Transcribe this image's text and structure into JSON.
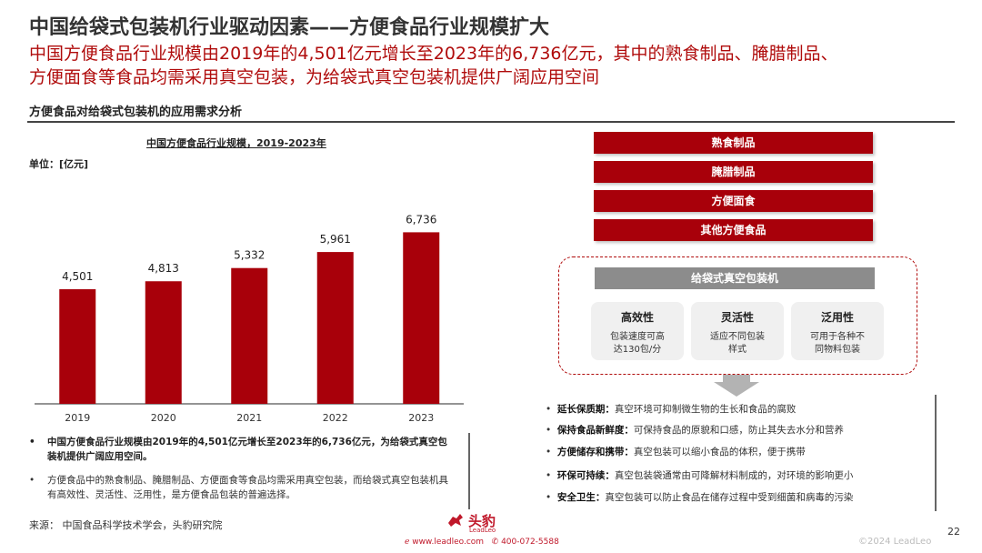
{
  "title": "中国给袋式包装机行业驱动因素——方便食品行业规模扩大",
  "subtitle_line1": "中国方便食品行业规模由2019年的4,501亿元增长至2023年的6,736亿元，其中的熟食制品、腌腊制品、",
  "subtitle_line2": "方便面食等食品均需采用真空包装，为给袋式真空包装机提供广阔应用空间",
  "section_title": "方便食品对给袋式包装机的应用需求分析",
  "chart_data": {
    "type": "bar",
    "title": "中国方便食品行业规模，2019-2023年",
    "unit_label": "单位：[亿元]",
    "categories": [
      "2019",
      "2020",
      "2021",
      "2022",
      "2023"
    ],
    "values": [
      4501,
      4813,
      5332,
      5961,
      6736
    ],
    "value_labels": [
      "4,501",
      "4,813",
      "5,332",
      "5,961",
      "6,736"
    ],
    "color": "#a8000a",
    "ylim": [
      0,
      7500
    ],
    "grid": false
  },
  "bullets": {
    "b1": "中国方便食品行业规模由2019年的4,501亿元增长至2023年的6,736亿元，为给袋式真空包装机提供广阔应用空间。",
    "b2": "方便食品中的熟食制品、腌腊制品、方便面食等食品均需采用真空包装，而给袋式真空包装机具有高效性、灵活性、泛用性，是方便食品包装的普遍选择。"
  },
  "bullet_marker": "•",
  "source": "来源：  中国食品科学技术学会，头豹研究院",
  "food_categories": [
    "熟食制品",
    "腌腊制品",
    "方便面食",
    "其他方便食品"
  ],
  "machine": {
    "title": "给袋式真空包装机",
    "features": [
      {
        "name": "高效性",
        "desc1": "包装速度可高",
        "desc2": "达130包/分"
      },
      {
        "name": "灵活性",
        "desc1": "适应不同包装",
        "desc2": "样式"
      },
      {
        "name": "泛用性",
        "desc1": "可用于各种不",
        "desc2": "同物料包装"
      }
    ]
  },
  "benefits": [
    {
      "label": "延长保质期：",
      "text": "真空环境可抑制微生物的生长和食品的腐败"
    },
    {
      "label": "保持食品新鲜度：",
      "text": "可保持食品的原貌和口感，防止其失去水分和营养"
    },
    {
      "label": "方便储存和携带：",
      "text": "真空包装可以缩小食品的体积，便于携带"
    },
    {
      "label": "环保可持续：",
      "text": "真空包装袋通常由可降解材料制成的，对环境的影响更小"
    },
    {
      "label": "安全卫生：",
      "text": "真空包装可以防止食品在储存过程中受到细菌和病毒的污染"
    }
  ],
  "footer": {
    "page_number": "22",
    "copyright": "©2024 LeadLeo",
    "logo_text": "头豹",
    "logo_sub": "LeadLeo",
    "website": "www.leadleo.com",
    "phone": "400-072-5588"
  },
  "colors": {
    "accent": "#a8000a",
    "subtitle": "#b00c0c",
    "panel_gray": "#8c8c8c"
  }
}
